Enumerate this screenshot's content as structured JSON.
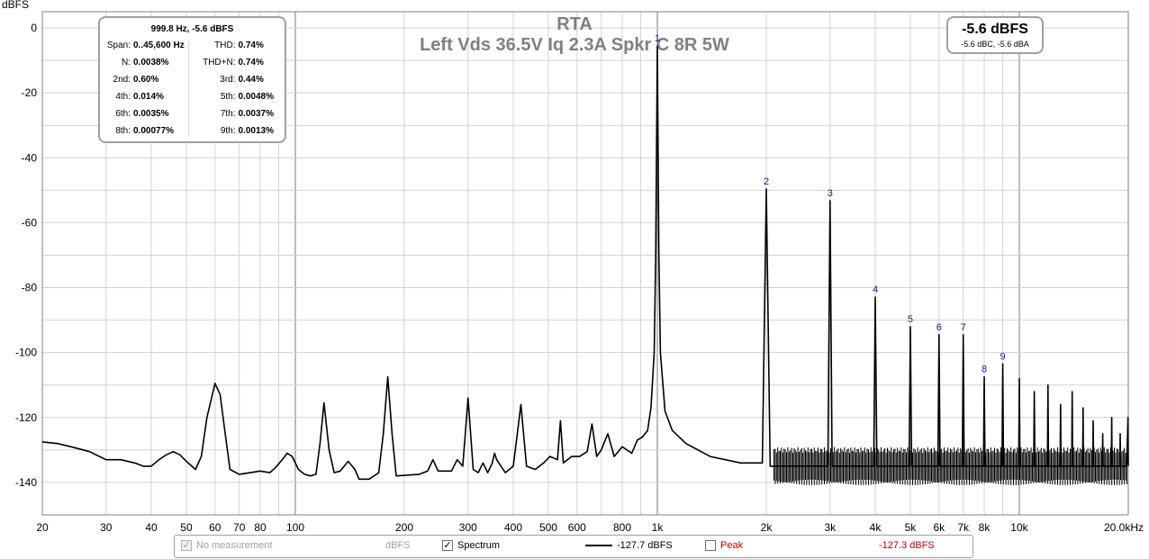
{
  "chart_data": {
    "type": "line",
    "title": "RTA",
    "subtitle": "Left Vds 36.5V Iq 2.3A Spkr C 8R 5W",
    "ylabel": "dBFS",
    "xscale": "log",
    "xlim": [
      20,
      20000
    ],
    "ylim": [
      -150,
      5
    ],
    "grid": true,
    "y_ticks": [
      0,
      -20,
      -40,
      -60,
      -80,
      -100,
      -120,
      -140
    ],
    "x_ticks": [
      {
        "v": 20,
        "label": "20"
      },
      {
        "v": 30,
        "label": "30"
      },
      {
        "v": 40,
        "label": "40"
      },
      {
        "v": 50,
        "label": "50"
      },
      {
        "v": 60,
        "label": "60"
      },
      {
        "v": 70,
        "label": "70"
      },
      {
        "v": 80,
        "label": "80"
      },
      {
        "v": 100,
        "label": "100"
      },
      {
        "v": 200,
        "label": "200"
      },
      {
        "v": 300,
        "label": "300"
      },
      {
        "v": 400,
        "label": "400"
      },
      {
        "v": 500,
        "label": "500"
      },
      {
        "v": 600,
        "label": "600"
      },
      {
        "v": 800,
        "label": "800"
      },
      {
        "v": 1000,
        "label": "1k"
      },
      {
        "v": 2000,
        "label": "2k"
      },
      {
        "v": 3000,
        "label": "3k"
      },
      {
        "v": 4000,
        "label": "4k"
      },
      {
        "v": 5000,
        "label": "5k"
      },
      {
        "v": 6000,
        "label": "6k"
      },
      {
        "v": 7000,
        "label": "7k"
      },
      {
        "v": 8000,
        "label": "8k"
      },
      {
        "v": 10000,
        "label": "10k"
      },
      {
        "v": 20000,
        "label": "20.0kHz"
      }
    ],
    "series": [
      {
        "name": "Spectrum",
        "color": "#000000",
        "points": [
          [
            20,
            -127.5
          ],
          [
            22,
            -128
          ],
          [
            24,
            -129
          ],
          [
            27,
            -130.5
          ],
          [
            30,
            -133
          ],
          [
            33,
            -133
          ],
          [
            36,
            -134
          ],
          [
            38,
            -135
          ],
          [
            40,
            -135
          ],
          [
            42,
            -133
          ],
          [
            44,
            -131.5
          ],
          [
            46,
            -130.5
          ],
          [
            48,
            -131.5
          ],
          [
            50,
            -133.5
          ],
          [
            53,
            -136
          ],
          [
            55,
            -132
          ],
          [
            57,
            -120
          ],
          [
            60,
            -109.5
          ],
          [
            62,
            -113
          ],
          [
            64,
            -125
          ],
          [
            66,
            -136
          ],
          [
            70,
            -137.5
          ],
          [
            75,
            -137
          ],
          [
            80,
            -136.5
          ],
          [
            85,
            -137
          ],
          [
            88,
            -135.5
          ],
          [
            92,
            -133
          ],
          [
            95,
            -131
          ],
          [
            98,
            -132
          ],
          [
            102,
            -136
          ],
          [
            106,
            -137.5
          ],
          [
            110,
            -138
          ],
          [
            114,
            -137.5
          ],
          [
            117,
            -128
          ],
          [
            120,
            -115.5
          ],
          [
            124,
            -130
          ],
          [
            128,
            -137
          ],
          [
            133,
            -136.5
          ],
          [
            140,
            -133.5
          ],
          [
            146,
            -136
          ],
          [
            150,
            -139
          ],
          [
            160,
            -139
          ],
          [
            170,
            -137
          ],
          [
            175,
            -125
          ],
          [
            180,
            -107.5
          ],
          [
            185,
            -125
          ],
          [
            190,
            -138
          ],
          [
            220,
            -137.5
          ],
          [
            232,
            -136.5
          ],
          [
            240,
            -133
          ],
          [
            248,
            -136.5
          ],
          [
            270,
            -136.5
          ],
          [
            280,
            -133
          ],
          [
            290,
            -135
          ],
          [
            300,
            -114
          ],
          [
            310,
            -136
          ],
          [
            320,
            -137
          ],
          [
            330,
            -134
          ],
          [
            340,
            -137
          ],
          [
            350,
            -134
          ],
          [
            355,
            -131
          ],
          [
            360,
            -133
          ],
          [
            380,
            -137
          ],
          [
            400,
            -135
          ],
          [
            420,
            -116
          ],
          [
            435,
            -135
          ],
          [
            460,
            -136
          ],
          [
            485,
            -134
          ],
          [
            505,
            -132
          ],
          [
            530,
            -133
          ],
          [
            540,
            -121
          ],
          [
            550,
            -134
          ],
          [
            580,
            -132
          ],
          [
            610,
            -132
          ],
          [
            640,
            -130.5
          ],
          [
            660,
            -122
          ],
          [
            680,
            -132
          ],
          [
            700,
            -130
          ],
          [
            730,
            -125
          ],
          [
            760,
            -132
          ],
          [
            800,
            -129
          ],
          [
            850,
            -131
          ],
          [
            880,
            -127
          ],
          [
            910,
            -126
          ],
          [
            940,
            -124
          ],
          [
            960,
            -117
          ],
          [
            980,
            -100
          ],
          [
            990,
            -70
          ],
          [
            999.8,
            -5.6
          ],
          [
            1010,
            -70
          ],
          [
            1020,
            -100
          ],
          [
            1050,
            -118
          ],
          [
            1100,
            -124
          ],
          [
            1200,
            -128
          ],
          [
            1400,
            -132
          ],
          [
            1700,
            -134
          ],
          [
            1950,
            -134
          ],
          [
            2000,
            -49.6
          ],
          [
            2050,
            -135
          ],
          [
            2500,
            -135
          ],
          [
            2960,
            -135
          ],
          [
            3000,
            -53.2
          ],
          [
            3040,
            -135
          ],
          [
            3500,
            -135
          ],
          [
            3960,
            -135
          ],
          [
            4000,
            -82.9
          ],
          [
            4040,
            -135
          ],
          [
            4500,
            -135
          ],
          [
            4960,
            -135
          ],
          [
            5000,
            -92
          ],
          [
            5040,
            -135
          ],
          [
            5500,
            -135
          ],
          [
            5960,
            -135
          ],
          [
            6000,
            -94.5
          ],
          [
            6040,
            -135
          ],
          [
            6500,
            -135
          ],
          [
            6960,
            -135
          ],
          [
            7000,
            -94.5
          ],
          [
            7040,
            -135
          ],
          [
            7500,
            -135
          ],
          [
            7960,
            -135
          ],
          [
            8000,
            -107.5
          ],
          [
            8040,
            -135
          ],
          [
            8500,
            -135
          ],
          [
            8960,
            -135
          ],
          [
            9000,
            -103.5
          ],
          [
            9040,
            -135
          ],
          [
            9500,
            -135
          ],
          [
            9960,
            -135
          ],
          [
            10000,
            -108
          ],
          [
            10040,
            -135
          ],
          [
            10800,
            -135
          ],
          [
            10960,
            -135
          ],
          [
            11000,
            -112
          ],
          [
            11040,
            -135
          ],
          [
            11800,
            -135
          ],
          [
            11960,
            -135
          ],
          [
            12000,
            -110
          ],
          [
            12040,
            -135
          ],
          [
            12800,
            -135
          ],
          [
            12960,
            -135
          ],
          [
            13000,
            -116
          ],
          [
            13040,
            -135
          ],
          [
            13800,
            -135
          ],
          [
            13960,
            -135
          ],
          [
            14000,
            -112
          ],
          [
            14040,
            -135
          ],
          [
            14800,
            -135
          ],
          [
            14960,
            -135
          ],
          [
            15000,
            -117
          ],
          [
            15040,
            -135
          ],
          [
            15800,
            -135
          ],
          [
            15960,
            -135
          ],
          [
            16000,
            -121
          ],
          [
            16040,
            -135
          ],
          [
            16800,
            -135
          ],
          [
            16960,
            -135
          ],
          [
            17000,
            -125
          ],
          [
            17040,
            -135
          ],
          [
            17800,
            -135
          ],
          [
            17960,
            -135
          ],
          [
            18000,
            -120
          ],
          [
            18040,
            -135
          ],
          [
            18800,
            -135
          ],
          [
            18960,
            -135
          ],
          [
            19000,
            -125
          ],
          [
            19040,
            -135
          ],
          [
            19800,
            -135
          ],
          [
            19960,
            -120
          ],
          [
            20000,
            -135
          ]
        ]
      }
    ],
    "harmonic_markers": [
      {
        "label": "1",
        "f": 999.8,
        "db": -5.6
      },
      {
        "label": "2",
        "f": 2000,
        "db": -49.6
      },
      {
        "label": "3",
        "f": 3000,
        "db": -53.2
      },
      {
        "label": "4",
        "f": 4000,
        "db": -82.9
      },
      {
        "label": "5",
        "f": 5000,
        "db": -92
      },
      {
        "label": "6",
        "f": 6000,
        "db": -94.5
      },
      {
        "label": "7",
        "f": 7000,
        "db": -94.5
      },
      {
        "label": "8",
        "f": 8000,
        "db": -107.5
      },
      {
        "label": "9",
        "f": 9000,
        "db": -103.5
      }
    ]
  },
  "stats": {
    "header": "999.8 Hz, -5.6 dBFS",
    "rows": [
      [
        {
          "label": "Span:",
          "value": "0..45,600 Hz"
        },
        {
          "label": "THD:",
          "value": "0.74%"
        }
      ],
      [
        {
          "label": "N:",
          "value": "0.0038%"
        },
        {
          "label": "THD+N:",
          "value": "0.74%"
        }
      ],
      [
        {
          "label": "2nd:",
          "value": "0.60%"
        },
        {
          "label": "3rd:",
          "value": "0.44%"
        }
      ],
      [
        {
          "label": "4th:",
          "value": "0.014%"
        },
        {
          "label": "5th:",
          "value": "0.0048%"
        }
      ],
      [
        {
          "label": "6th:",
          "value": "0.0035%"
        },
        {
          "label": "7th:",
          "value": "0.0037%"
        }
      ],
      [
        {
          "label": "8th:",
          "value": "0.00077%"
        },
        {
          "label": "9th:",
          "value": "0.0013%"
        }
      ]
    ]
  },
  "level": {
    "main": "-5.6 dBFS",
    "sub": "-5.6 dBC, -5.6 dBA"
  },
  "legend": {
    "no_measurement": "No measurement",
    "no_measurement_unit": "dBFS",
    "spectrum_label": "Spectrum",
    "spectrum_value": "-127.7 dBFS",
    "peak_label": "Peak",
    "peak_value": "-127.3 dBFS",
    "checkmark": "✓"
  }
}
